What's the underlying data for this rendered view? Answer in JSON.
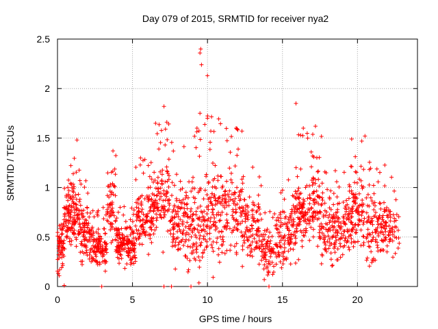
{
  "chart_data": {
    "type": "scatter",
    "title": "Day 079 of 2015, SRMTID for receiver nya2",
    "xlabel": "GPS time / hours",
    "ylabel": "SRMTID / TECUs",
    "xlim": [
      0,
      24
    ],
    "ylim": [
      0,
      2.5
    ],
    "xticks": [
      0,
      5,
      10,
      15,
      20
    ],
    "xtick_labels": [
      "0",
      "5",
      "10",
      "15",
      "20"
    ],
    "yticks": [
      0,
      0.5,
      1,
      1.5,
      2,
      2.5
    ],
    "ytick_labels": [
      "0",
      "0.5",
      "1",
      "1.5",
      "2",
      "2.5"
    ],
    "grid": true,
    "marker": "plus",
    "color": "#ff0000",
    "highlights": [
      {
        "x": 9.55,
        "y": 2.4
      },
      {
        "x": 9.5,
        "y": 2.36
      },
      {
        "x": 9.6,
        "y": 2.24
      },
      {
        "x": 10.0,
        "y": 2.13
      },
      {
        "x": 9.5,
        "y": 1.75
      },
      {
        "x": 10.0,
        "y": 1.7
      },
      {
        "x": 7.1,
        "y": 1.82
      },
      {
        "x": 15.9,
        "y": 1.85
      },
      {
        "x": 7.2,
        "y": 1.59
      },
      {
        "x": 9.3,
        "y": 1.6
      },
      {
        "x": 12.3,
        "y": 1.57
      },
      {
        "x": 17.2,
        "y": 1.62
      },
      {
        "x": 1.3,
        "y": 1.48
      },
      {
        "x": 20.5,
        "y": 1.52
      },
      {
        "x": 3.7,
        "y": 1.37
      },
      {
        "x": 7.1,
        "y": 0.0
      },
      {
        "x": 7.6,
        "y": 0.0
      },
      {
        "x": 8.9,
        "y": 0.0
      },
      {
        "x": 14.1,
        "y": 0.0
      },
      {
        "x": 0.45,
        "y": 0.01
      },
      {
        "x": 2.95,
        "y": 0.0
      }
    ],
    "segments": [
      {
        "x0": 0.0,
        "x1": 0.45,
        "base": 0.45,
        "spread": 0.3,
        "n": 60
      },
      {
        "x0": 0.45,
        "x1": 1.5,
        "base": 0.7,
        "spread": 0.28,
        "n": 140
      },
      {
        "x0": 1.5,
        "x1": 2.2,
        "base": 0.55,
        "spread": 0.25,
        "n": 80
      },
      {
        "x0": 2.2,
        "x1": 3.3,
        "base": 0.4,
        "spread": 0.2,
        "n": 120
      },
      {
        "x0": 3.3,
        "x1": 3.9,
        "base": 0.75,
        "spread": 0.3,
        "n": 60
      },
      {
        "x0": 3.9,
        "x1": 5.2,
        "base": 0.42,
        "spread": 0.18,
        "n": 150
      },
      {
        "x0": 5.2,
        "x1": 6.3,
        "base": 0.7,
        "spread": 0.28,
        "n": 110
      },
      {
        "x0": 6.3,
        "x1": 7.5,
        "base": 0.9,
        "spread": 0.35,
        "n": 110
      },
      {
        "x0": 7.5,
        "x1": 8.5,
        "base": 0.7,
        "spread": 0.35,
        "n": 90
      },
      {
        "x0": 8.5,
        "x1": 9.8,
        "base": 0.6,
        "spread": 0.45,
        "n": 120
      },
      {
        "x0": 9.8,
        "x1": 11.2,
        "base": 0.75,
        "spread": 0.45,
        "n": 130
      },
      {
        "x0": 11.2,
        "x1": 12.5,
        "base": 0.75,
        "spread": 0.4,
        "n": 110
      },
      {
        "x0": 12.5,
        "x1": 13.6,
        "base": 0.6,
        "spread": 0.35,
        "n": 90
      },
      {
        "x0": 13.6,
        "x1": 14.6,
        "base": 0.35,
        "spread": 0.2,
        "n": 80
      },
      {
        "x0": 14.6,
        "x1": 15.6,
        "base": 0.5,
        "spread": 0.3,
        "n": 90
      },
      {
        "x0": 15.6,
        "x1": 16.5,
        "base": 0.75,
        "spread": 0.4,
        "n": 100
      },
      {
        "x0": 16.5,
        "x1": 17.6,
        "base": 0.8,
        "spread": 0.38,
        "n": 100
      },
      {
        "x0": 17.6,
        "x1": 18.6,
        "base": 0.55,
        "spread": 0.3,
        "n": 90
      },
      {
        "x0": 18.6,
        "x1": 19.6,
        "base": 0.6,
        "spread": 0.3,
        "n": 90
      },
      {
        "x0": 19.6,
        "x1": 20.6,
        "base": 0.75,
        "spread": 0.35,
        "n": 90
      },
      {
        "x0": 20.6,
        "x1": 21.5,
        "base": 0.6,
        "spread": 0.3,
        "n": 80
      },
      {
        "x0": 21.5,
        "x1": 22.8,
        "base": 0.6,
        "spread": 0.3,
        "n": 90
      }
    ]
  }
}
